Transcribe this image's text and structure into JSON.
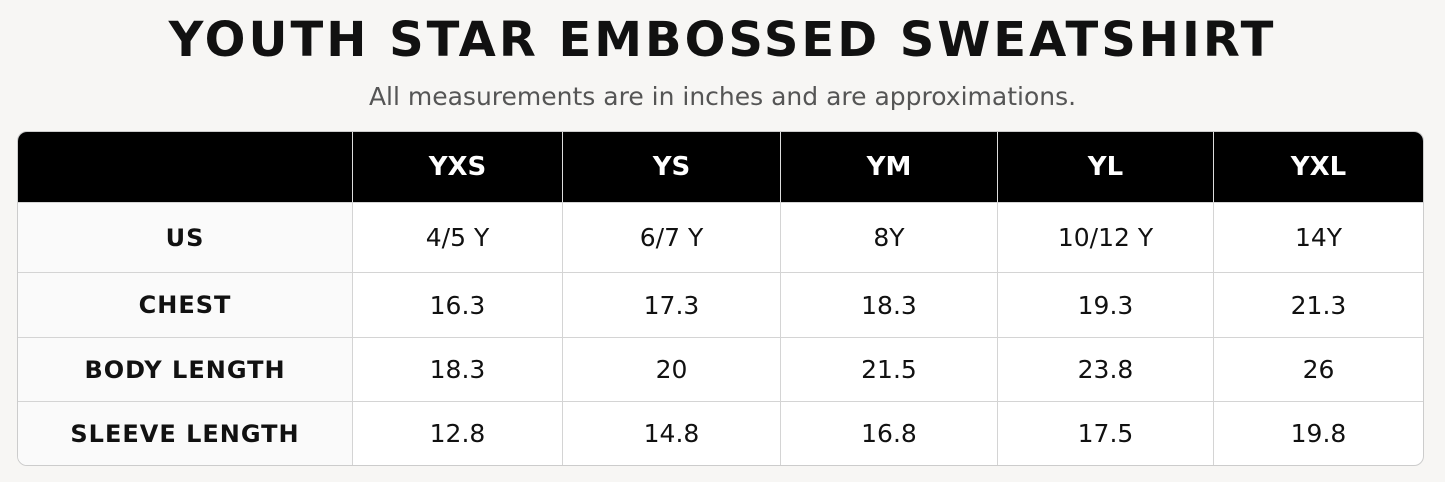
{
  "header": {
    "title": "YOUTH STAR EMBOSSED SWEATSHIRT",
    "subtitle": "All measurements are in inches and are approximations."
  },
  "table": {
    "columns": [
      "YXS",
      "YS",
      "YM",
      "YL",
      "YXL"
    ],
    "rows": [
      {
        "label": "US",
        "cells": [
          "4/5 Y",
          "6/7 Y",
          "8Y",
          "10/12 Y",
          "14Y"
        ]
      },
      {
        "label": "CHEST",
        "cells": [
          "16.3",
          "17.3",
          "18.3",
          "19.3",
          "21.3"
        ]
      },
      {
        "label": "BODY LENGTH",
        "cells": [
          "18.3",
          "20",
          "21.5",
          "23.8",
          "26"
        ]
      },
      {
        "label": "SLEEVE LENGTH",
        "cells": [
          "12.8",
          "14.8",
          "16.8",
          "17.5",
          "19.8"
        ]
      }
    ]
  }
}
